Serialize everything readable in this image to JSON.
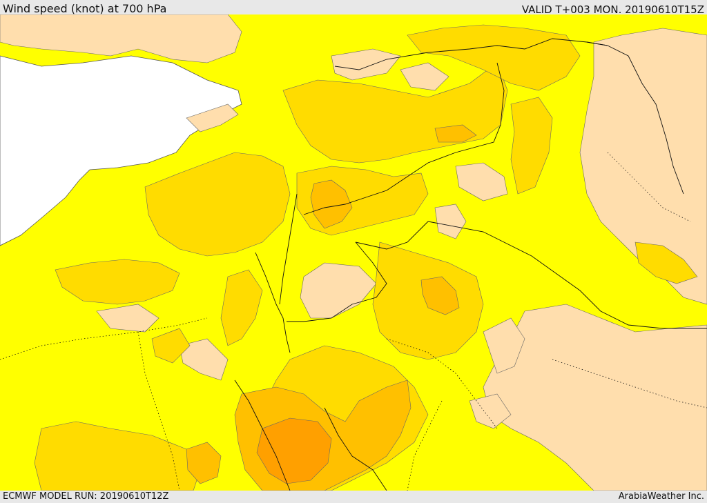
{
  "header": {
    "title": "Wind speed (knot) at 700 hPa",
    "valid": "VALID T+003 MON. 20190610T15Z"
  },
  "footer": {
    "model_run": "ECMWF MODEL RUN: 20190610T12Z",
    "credit": "ArabiaWeather Inc."
  },
  "colors": {
    "sea": "#ffffff",
    "calm": "#ffdead",
    "light": "#ffff00",
    "moderate": "#ffdc00",
    "fresh": "#ffc000",
    "strong": "#ffa000",
    "borders": "#000000"
  }
}
